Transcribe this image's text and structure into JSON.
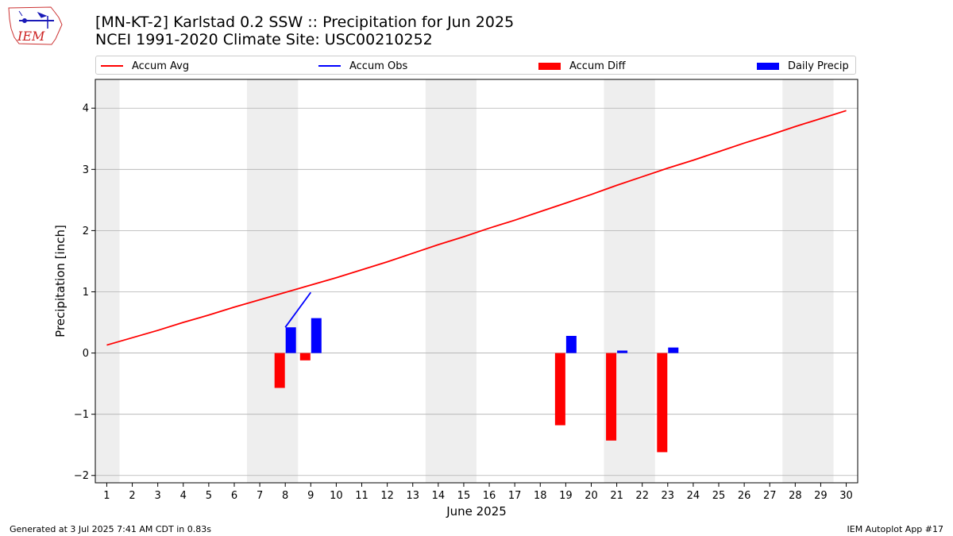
{
  "header": {
    "title_line1": "[MN-KT-2] Karlstad 0.2 SSW :: Precipitation for Jun 2025",
    "title_line2": "NCEI 1991-2020 Climate Site: USC00210252",
    "logo_text": "IEM"
  },
  "legend": {
    "accum_avg": "Accum Avg",
    "accum_obs": "Accum Obs",
    "accum_diff": "Accum Diff",
    "daily_precip": "Daily Precip"
  },
  "footer": {
    "generated": "Generated at 3 Jul 2025 7:41 AM CDT in 0.83s",
    "app": "IEM Autoplot App #17"
  },
  "colors": {
    "avg": "#ff0000",
    "obs": "#0000ff",
    "diff": "#ff0000",
    "daily": "#0000ff",
    "weekend": "#eeeeee",
    "grid": "#b0b0b0"
  },
  "chart_data": {
    "type": "bar",
    "title": "[MN-KT-2] Karlstad 0.2 SSW :: Precipitation for Jun 2025",
    "xlabel": "June 2025",
    "ylabel": "Precipitation [inch]",
    "ylim": [
      -2.12,
      4.47
    ],
    "yticks": [
      -2,
      -1,
      0,
      1,
      2,
      3,
      4
    ],
    "ytick_labels": [
      "−2",
      "−1",
      "0",
      "1",
      "2",
      "3",
      "4"
    ],
    "x": [
      1,
      2,
      3,
      4,
      5,
      6,
      7,
      8,
      9,
      10,
      11,
      12,
      13,
      14,
      15,
      16,
      17,
      18,
      19,
      20,
      21,
      22,
      23,
      24,
      25,
      26,
      27,
      28,
      29,
      30
    ],
    "weekend_spans": [
      [
        0.5,
        1.5
      ],
      [
        6.5,
        8.5
      ],
      [
        13.5,
        15.5
      ],
      [
        20.5,
        22.5
      ],
      [
        27.5,
        29.5
      ]
    ],
    "grid": "y",
    "legend_position": "top",
    "series": [
      {
        "name": "Accum Avg",
        "type": "line",
        "x": [
          1,
          2,
          3,
          4,
          5,
          6,
          7,
          8,
          9,
          10,
          11,
          12,
          13,
          14,
          15,
          16,
          17,
          18,
          19,
          20,
          21,
          22,
          23,
          24,
          25,
          26,
          27,
          28,
          29,
          30
        ],
        "values": [
          0.13,
          0.25,
          0.37,
          0.5,
          0.62,
          0.75,
          0.87,
          0.99,
          1.11,
          1.23,
          1.36,
          1.49,
          1.63,
          1.77,
          1.9,
          2.04,
          2.17,
          2.31,
          2.45,
          2.59,
          2.74,
          2.88,
          3.02,
          3.15,
          3.29,
          3.43,
          3.56,
          3.7,
          3.83,
          3.96
        ]
      },
      {
        "name": "Accum Obs",
        "type": "line",
        "x": [
          8,
          9
        ],
        "values": [
          0.42,
          0.99
        ]
      },
      {
        "name": "Accum Diff",
        "type": "bar",
        "x": [
          8,
          9,
          19,
          21,
          23
        ],
        "values": [
          -0.57,
          -0.12,
          -1.18,
          -1.43,
          -1.62
        ]
      },
      {
        "name": "Daily Precip",
        "type": "bar",
        "x": [
          8,
          9,
          19,
          21,
          23
        ],
        "values": [
          0.42,
          0.57,
          0.28,
          0.04,
          0.09
        ]
      }
    ]
  }
}
